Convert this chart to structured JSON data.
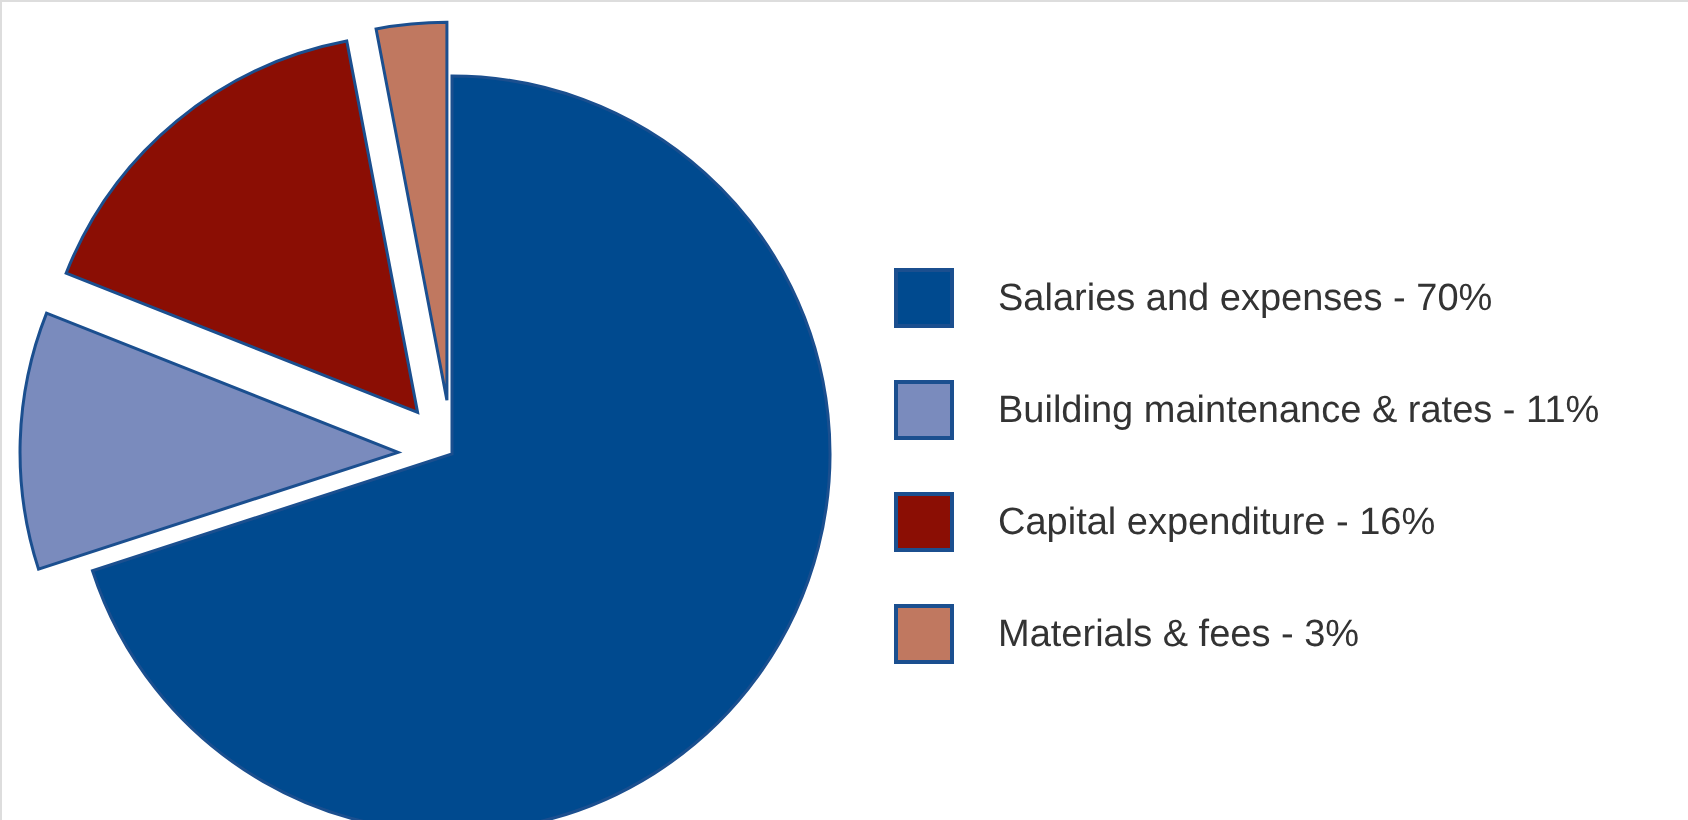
{
  "chart_data": {
    "type": "pie",
    "categories": [
      "Salaries and expenses - 70%",
      "Building maintenance & rates - 11%",
      "Capital expenditure - 16%",
      "Materials & fees - 3%"
    ],
    "values": [
      70,
      11,
      16,
      3
    ],
    "colors": [
      "#004a8f",
      "#7a8bbd",
      "#8b0e04",
      "#c07860"
    ],
    "legend": "right"
  }
}
